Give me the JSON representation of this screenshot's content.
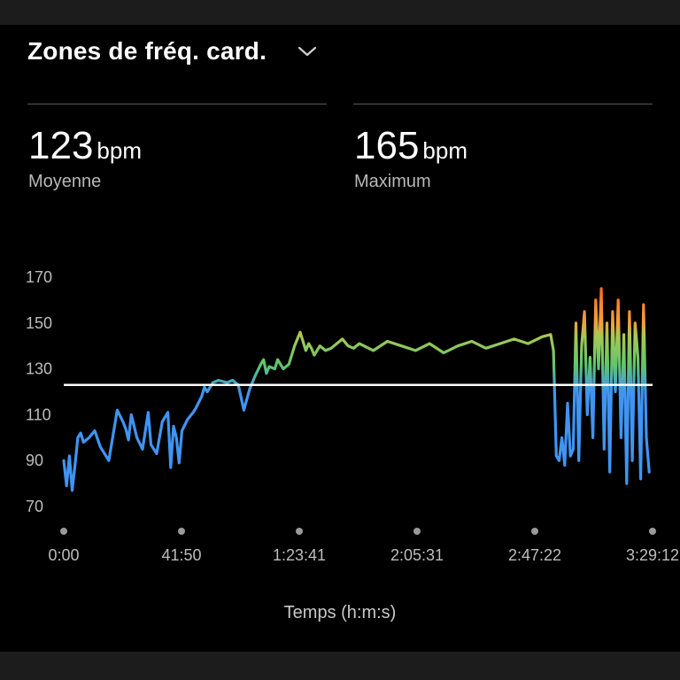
{
  "header": {
    "title": "Zones de fréq. card.",
    "dropdown_icon": "chevron-down-icon"
  },
  "stats": [
    {
      "value": "123",
      "unit": "bpm",
      "label": "Moyenne"
    },
    {
      "value": "165",
      "unit": "bpm",
      "label": "Maximum"
    }
  ],
  "colors": {
    "low": "#3f95f2",
    "mid": "#62c66a",
    "high": "#ff6a2a",
    "average_line": "#ffffff"
  },
  "chart_data": {
    "type": "line",
    "xlabel": "Temps (h:m:s)",
    "ylabel": "",
    "y_ticks": [
      "70",
      "90",
      "110",
      "130",
      "150",
      "170"
    ],
    "x_ticks": [
      "0:00",
      "41:50",
      "1:23:41",
      "2:05:31",
      "2:47:22",
      "3:29:12"
    ],
    "ylim": [
      70,
      170
    ],
    "xlim_minutes": [
      0,
      209.2
    ],
    "average_bpm": 123,
    "max_bpm": 165,
    "series": [
      {
        "x_minutes": [
          0,
          1,
          2,
          3,
          4,
          5,
          6,
          7,
          9,
          11,
          13,
          16,
          19,
          21,
          22,
          23,
          24,
          26,
          28,
          30,
          31,
          33,
          35,
          37,
          38,
          39,
          40,
          41,
          42,
          44,
          46,
          47,
          49,
          50,
          51,
          53,
          55,
          58,
          60,
          62,
          64,
          66,
          68,
          70,
          71,
          72,
          73,
          75,
          76,
          78,
          80,
          82,
          84,
          86,
          87,
          88,
          89,
          91,
          93,
          95,
          97,
          99,
          101,
          103,
          105,
          110,
          115,
          120,
          125,
          130,
          135,
          140,
          145,
          150,
          155,
          160,
          165,
          170,
          173,
          174,
          175,
          176,
          177,
          178,
          179,
          180,
          181,
          182,
          183,
          184,
          185,
          186,
          187,
          188,
          189,
          190,
          191,
          192,
          193,
          194,
          195,
          196,
          197,
          198,
          199,
          200,
          201,
          202,
          203,
          204,
          205,
          206,
          207,
          208
        ],
        "bpm": [
          90,
          79,
          92,
          77,
          88,
          100,
          102,
          98,
          100,
          103,
          96,
          90,
          112,
          107,
          104,
          99,
          110,
          100,
          95,
          111,
          97,
          93,
          107,
          111,
          87,
          105,
          100,
          89,
          103,
          108,
          111,
          113,
          118,
          122,
          120,
          124,
          125,
          124,
          125,
          123,
          112,
          121,
          127,
          132,
          134,
          128,
          131,
          130,
          134,
          130,
          132,
          140,
          146,
          138,
          141,
          139,
          136,
          140,
          138,
          139,
          141,
          143,
          140,
          139,
          141,
          138,
          142,
          140,
          138,
          141,
          137,
          140,
          142,
          139,
          141,
          143,
          141,
          144,
          145,
          138,
          92,
          90,
          100,
          88,
          115,
          92,
          95,
          150,
          90,
          140,
          155,
          110,
          135,
          100,
          160,
          130,
          165,
          95,
          150,
          85,
          155,
          120,
          160,
          100,
          145,
          80,
          155,
          90,
          150,
          135,
          82,
          158,
          100,
          85
        ]
      }
    ]
  }
}
